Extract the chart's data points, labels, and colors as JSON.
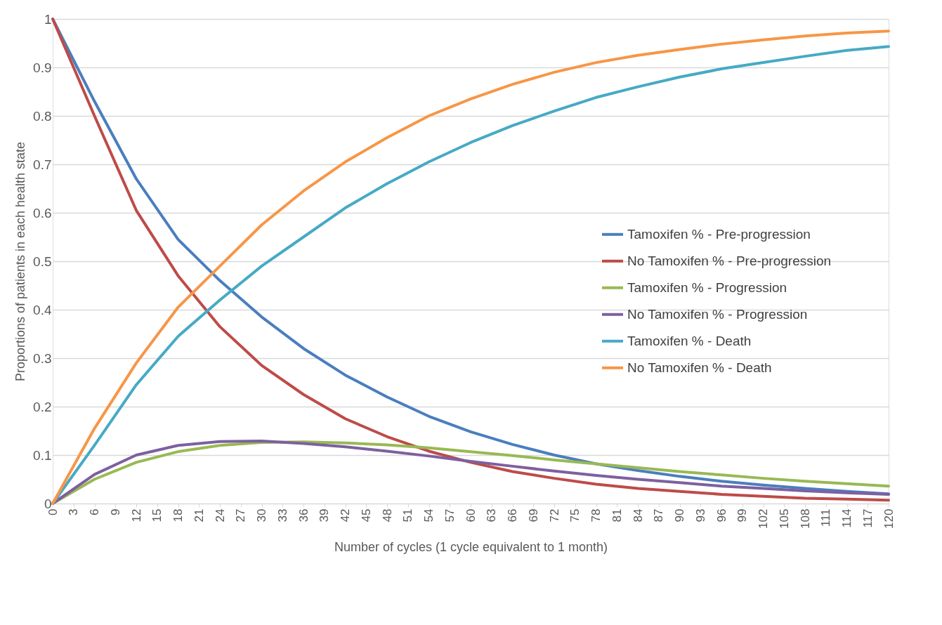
{
  "chart_data": {
    "type": "line",
    "xlabel": "Number of cycles (1 cycle equivalent to 1 month)",
    "ylabel": "Proportions of patients in each health state",
    "x": [
      0,
      6,
      12,
      18,
      24,
      30,
      36,
      42,
      48,
      54,
      60,
      66,
      72,
      78,
      84,
      90,
      96,
      102,
      108,
      114,
      120
    ],
    "xlim": [
      0,
      120
    ],
    "xticks": [
      0,
      3,
      6,
      9,
      12,
      15,
      18,
      21,
      24,
      27,
      30,
      33,
      36,
      39,
      42,
      45,
      48,
      51,
      54,
      57,
      60,
      63,
      66,
      69,
      72,
      75,
      78,
      81,
      84,
      87,
      90,
      93,
      96,
      99,
      102,
      105,
      108,
      111,
      114,
      117,
      120
    ],
    "ylim": [
      0,
      1
    ],
    "yticks": [
      0,
      0.1,
      0.2,
      0.3,
      0.4,
      0.5,
      0.6,
      0.7,
      0.8,
      0.9,
      1
    ],
    "grid": "y",
    "legend": "right",
    "marker": "none",
    "line_style": "solid",
    "series": [
      {
        "name": "Tamoxifen % - Pre-progression",
        "color": "#4a7ebf",
        "values": [
          1,
          0.83,
          0.67,
          0.545,
          0.46,
          0.385,
          0.32,
          0.265,
          0.22,
          0.18,
          0.148,
          0.122,
          0.1,
          0.082,
          0.068,
          0.056,
          0.046,
          0.038,
          0.031,
          0.025,
          0.02
        ]
      },
      {
        "name": "No Tamoxifen % - Pre-progression",
        "color": "#be4b48",
        "values": [
          1,
          0.8,
          0.605,
          0.47,
          0.365,
          0.285,
          0.225,
          0.175,
          0.138,
          0.108,
          0.085,
          0.066,
          0.052,
          0.04,
          0.031,
          0.025,
          0.019,
          0.015,
          0.011,
          0.009,
          0.007
        ]
      },
      {
        "name": "Tamoxifen % - Progression",
        "color": "#98b954",
        "values": [
          0,
          0.05,
          0.085,
          0.107,
          0.12,
          0.126,
          0.127,
          0.125,
          0.121,
          0.115,
          0.107,
          0.099,
          0.09,
          0.082,
          0.074,
          0.066,
          0.059,
          0.052,
          0.046,
          0.041,
          0.036
        ]
      },
      {
        "name": "No Tamoxifen % - Progression",
        "color": "#7d60a0",
        "values": [
          0,
          0.06,
          0.1,
          0.12,
          0.128,
          0.129,
          0.124,
          0.117,
          0.108,
          0.098,
          0.087,
          0.077,
          0.067,
          0.058,
          0.05,
          0.043,
          0.036,
          0.031,
          0.026,
          0.022,
          0.019
        ]
      },
      {
        "name": "Tamoxifen % - Death",
        "color": "#46aac5",
        "values": [
          0,
          0.12,
          0.245,
          0.345,
          0.42,
          0.49,
          0.55,
          0.61,
          0.66,
          0.705,
          0.745,
          0.78,
          0.81,
          0.838,
          0.86,
          0.88,
          0.897,
          0.91,
          0.923,
          0.935,
          0.943
        ]
      },
      {
        "name": "No Tamoxifen % - Death",
        "color": "#f79646",
        "values": [
          0,
          0.155,
          0.29,
          0.405,
          0.49,
          0.575,
          0.645,
          0.705,
          0.755,
          0.8,
          0.835,
          0.865,
          0.89,
          0.91,
          0.925,
          0.937,
          0.948,
          0.957,
          0.965,
          0.971,
          0.975
        ]
      }
    ]
  }
}
